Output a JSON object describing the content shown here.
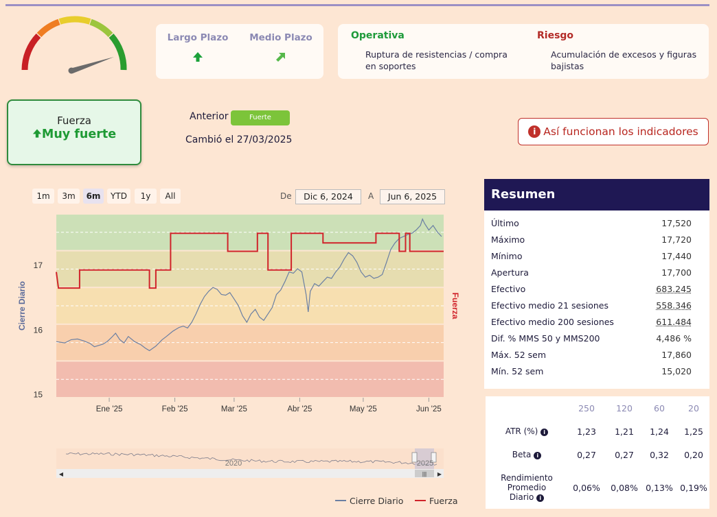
{
  "horizon": {
    "largo_plazo": "Largo Plazo",
    "medio_plazo": "Medio Plazo",
    "largo_icon": "arrow-up-icon",
    "medio_icon": "arrow-up-right-icon"
  },
  "operativa": {
    "title": "Operativa",
    "text": "Ruptura de resistencias / compra en soportes"
  },
  "riesgo": {
    "title": "Riesgo",
    "text": "Acumulación de excesos y figuras bajistas"
  },
  "fuerza": {
    "label": "Fuerza",
    "value": "Muy fuerte",
    "icon": "arrow-up-icon"
  },
  "anterior": {
    "label": "Anterior",
    "badge": "Fuerte",
    "cambio": "Cambió el 27/03/2025"
  },
  "info_button": "Así funcionan los indicadores",
  "ranges": [
    "1m",
    "3m",
    "6m",
    "YTD",
    "1y",
    "All"
  ],
  "active_range": "6m",
  "date_range": {
    "from_label": "De",
    "from": "Dic 6, 2024",
    "to_label": "A",
    "to": "Jun 6, 2025"
  },
  "chart_data": {
    "type": "line",
    "ylabel": "Cierre Diario",
    "y2label": "Fuerza",
    "yticks": [
      "15",
      "16",
      "17"
    ],
    "ylim": [
      14.95,
      17.8
    ],
    "xticks": [
      "Ene '25",
      "Feb '25",
      "Mar '25",
      "Abr '25",
      "May '25",
      "Jun '25"
    ],
    "xtick_values": [
      25,
      56,
      84,
      115,
      145,
      176
    ],
    "xlim": [
      0,
      183
    ],
    "zone_colors": [
      "#f2bcaf",
      "#f8cfad",
      "#f7dfb0",
      "#e6ddb0",
      "#cce0b7"
    ],
    "series": [
      {
        "name": "Cierre Diario",
        "color": "#6a7fa3",
        "points": [
          [
            0,
            15.82
          ],
          [
            4,
            15.8
          ],
          [
            7,
            15.85
          ],
          [
            10,
            15.86
          ],
          [
            13,
            15.83
          ],
          [
            16,
            15.79
          ],
          [
            18,
            15.74
          ],
          [
            20,
            15.76
          ],
          [
            22,
            15.78
          ],
          [
            24,
            15.82
          ],
          [
            26,
            15.88
          ],
          [
            28,
            15.95
          ],
          [
            30,
            15.85
          ],
          [
            32,
            15.8
          ],
          [
            34,
            15.9
          ],
          [
            37,
            15.82
          ],
          [
            40,
            15.77
          ],
          [
            42,
            15.72
          ],
          [
            44,
            15.68
          ],
          [
            47,
            15.75
          ],
          [
            50,
            15.85
          ],
          [
            52,
            15.9
          ],
          [
            55,
            15.98
          ],
          [
            58,
            16.04
          ],
          [
            60,
            16.06
          ],
          [
            62,
            16.03
          ],
          [
            64,
            16.12
          ],
          [
            66,
            16.25
          ],
          [
            68,
            16.4
          ],
          [
            70,
            16.52
          ],
          [
            72,
            16.6
          ],
          [
            74,
            16.66
          ],
          [
            76,
            16.63
          ],
          [
            78,
            16.55
          ],
          [
            80,
            16.54
          ],
          [
            82,
            16.58
          ],
          [
            84,
            16.48
          ],
          [
            86,
            16.38
          ],
          [
            88,
            16.22
          ],
          [
            90,
            16.12
          ],
          [
            92,
            16.25
          ],
          [
            94,
            16.32
          ],
          [
            96,
            16.2
          ],
          [
            98,
            16.15
          ],
          [
            100,
            16.25
          ],
          [
            102,
            16.35
          ],
          [
            104,
            16.55
          ],
          [
            106,
            16.62
          ],
          [
            108,
            16.75
          ],
          [
            110,
            16.9
          ],
          [
            112,
            16.88
          ],
          [
            114,
            16.95
          ],
          [
            116,
            16.9
          ],
          [
            118,
            16.55
          ],
          [
            119,
            16.28
          ],
          [
            120,
            16.6
          ],
          [
            122,
            16.72
          ],
          [
            124,
            16.68
          ],
          [
            126,
            16.75
          ],
          [
            128,
            16.82
          ],
          [
            130,
            16.8
          ],
          [
            132,
            16.9
          ],
          [
            134,
            16.98
          ],
          [
            136,
            17.1
          ],
          [
            138,
            17.2
          ],
          [
            140,
            17.15
          ],
          [
            142,
            17.05
          ],
          [
            144,
            16.9
          ],
          [
            146,
            16.82
          ],
          [
            148,
            16.85
          ],
          [
            150,
            16.8
          ],
          [
            152,
            16.82
          ],
          [
            154,
            16.86
          ],
          [
            156,
            17.05
          ],
          [
            158,
            17.25
          ],
          [
            160,
            17.35
          ],
          [
            162,
            17.42
          ],
          [
            164,
            17.45
          ],
          [
            166,
            17.48
          ],
          [
            168,
            17.5
          ],
          [
            170,
            17.55
          ],
          [
            172,
            17.62
          ],
          [
            173,
            17.72
          ],
          [
            174,
            17.65
          ],
          [
            176,
            17.55
          ],
          [
            178,
            17.62
          ],
          [
            180,
            17.52
          ],
          [
            182,
            17.45
          ]
        ]
      },
      {
        "name": "Fuerza",
        "color": "#d0232a",
        "steps": [
          [
            0,
            16.9
          ],
          [
            1,
            16.65
          ],
          [
            11,
            16.65
          ],
          [
            11,
            16.93
          ],
          [
            44,
            16.93
          ],
          [
            44,
            16.65
          ],
          [
            47,
            16.65
          ],
          [
            47,
            16.93
          ],
          [
            54,
            16.93
          ],
          [
            54,
            17.5
          ],
          [
            81,
            17.5
          ],
          [
            81,
            17.22
          ],
          [
            95,
            17.22
          ],
          [
            95,
            17.5
          ],
          [
            100,
            17.5
          ],
          [
            100,
            16.93
          ],
          [
            111,
            16.93
          ],
          [
            111,
            17.5
          ],
          [
            126,
            17.5
          ],
          [
            126,
            17.35
          ],
          [
            151,
            17.35
          ],
          [
            151,
            17.5
          ],
          [
            162,
            17.5
          ],
          [
            162,
            17.22
          ],
          [
            165,
            17.22
          ],
          [
            165,
            17.5
          ],
          [
            167,
            17.5
          ],
          [
            167,
            17.22
          ],
          [
            183,
            17.22
          ]
        ]
      }
    ]
  },
  "navigator": {
    "label": "2020",
    "end_label": "2025"
  },
  "legend": [
    "Cierre Diario",
    "Fuerza"
  ],
  "resumen": {
    "title": "Resumen",
    "rows": [
      {
        "label": "Último",
        "value": "17,520"
      },
      {
        "label": "Máximo",
        "value": "17,720"
      },
      {
        "label": "Mínimo",
        "value": "17,440"
      },
      {
        "label": "Apertura",
        "value": "17,700"
      },
      {
        "label": "Efectivo",
        "value": "683.245"
      },
      {
        "label": "Efectivo medio 21 sesiones",
        "value": "558.346"
      },
      {
        "label": "Efectivo medio 200 sesiones",
        "value": "611.484"
      },
      {
        "label": "Dif. % MMS 50 y MMS200",
        "value": "4,486 %"
      },
      {
        "label": "Máx. 52 sem",
        "value": "17,860"
      },
      {
        "label": "Mín. 52 sem",
        "value": "15,020"
      }
    ]
  },
  "stats": {
    "headers": [
      "250",
      "120",
      "60",
      "20"
    ],
    "atr_label": "ATR (%)",
    "atr": [
      "1,23",
      "1,21",
      "1,24",
      "1,25"
    ],
    "beta_label": "Beta",
    "beta": [
      "0,27",
      "0,27",
      "0,32",
      "0,20"
    ],
    "rend_label_1": "Rendimiento",
    "rend_label_2": "Promedio",
    "rend_label_3": "Diario",
    "rend": [
      "0,06%",
      "0,08%",
      "0,13%",
      "0,19%"
    ],
    "info_icon": "info-icon"
  }
}
